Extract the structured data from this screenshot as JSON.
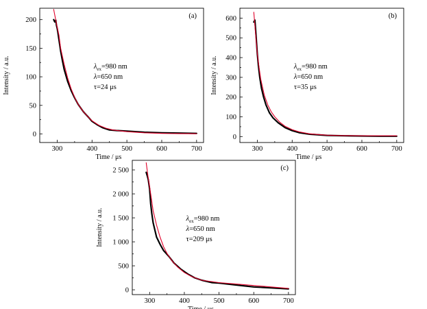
{
  "chart_data": [
    {
      "type": "line",
      "panel": "(a)",
      "xlabel": "Time  / μs",
      "ylabel": "Intensity / a.u.",
      "xlim": [
        250,
        720
      ],
      "ylim": [
        -15,
        220
      ],
      "x_ticks": [
        300,
        400,
        500,
        600,
        700
      ],
      "y_ticks": [
        0,
        50,
        100,
        150,
        200
      ],
      "y_tick_labels": [
        "0",
        "50",
        "100",
        "150",
        "200"
      ],
      "annotation": {
        "lambda_ex": "=980 nm",
        "lambda_symbol": "λ",
        "lambda_ex_sub": "ex",
        "lambda_line": "=650 nm",
        "tau_line": "τ=24 μs"
      },
      "series": [
        {
          "role": "measured",
          "color": "#000000",
          "x": [
            290,
            293,
            296,
            298,
            300,
            302,
            305,
            310,
            315,
            320,
            330,
            340,
            350,
            360,
            375,
            390,
            400,
            415,
            430,
            450,
            470,
            500,
            550,
            600,
            650,
            700
          ],
          "y": [
            200,
            196,
            199,
            190,
            185,
            178,
            165,
            145,
            128,
            113,
            92,
            76,
            63,
            52,
            39,
            29,
            22,
            16,
            11,
            7,
            6,
            5,
            3,
            2,
            1.5,
            1
          ]
        },
        {
          "role": "fit",
          "color": "#e0002a",
          "x": [
            290,
            295,
            300,
            305,
            310,
            320,
            330,
            340,
            350,
            360,
            375,
            390,
            400,
            420,
            440,
            460,
            500,
            550,
            600,
            650,
            700
          ],
          "y": [
            218,
            202,
            187,
            173,
            150,
            122,
            98,
            79,
            64,
            52,
            39,
            29,
            23,
            15,
            10,
            7,
            4,
            2,
            1,
            0.5,
            0.3
          ]
        }
      ]
    },
    {
      "type": "line",
      "panel": "(b)",
      "xlabel": "Time  / μs",
      "ylabel": "Intensity / a.u.",
      "xlim": [
        250,
        720
      ],
      "ylim": [
        -30,
        650
      ],
      "x_ticks": [
        300,
        400,
        500,
        600,
        700
      ],
      "y_ticks": [
        0,
        100,
        200,
        300,
        400,
        500,
        600
      ],
      "y_tick_labels": [
        "0",
        "100",
        "200",
        "300",
        "400",
        "500",
        "600"
      ],
      "annotation": {
        "lambda_ex": "=980 nm",
        "lambda_symbol": "λ",
        "lambda_ex_sub": "ex",
        "lambda_line": "=650 nm",
        "tau_line": "τ=35 μs"
      },
      "series": [
        {
          "role": "measured",
          "color": "#000000",
          "x": [
            290,
            293,
            296,
            300,
            303,
            307,
            312,
            318,
            325,
            335,
            345,
            360,
            380,
            400,
            420,
            450,
            500,
            550,
            600,
            650,
            700
          ],
          "y": [
            580,
            590,
            520,
            420,
            360,
            300,
            245,
            200,
            160,
            120,
            95,
            70,
            45,
            30,
            20,
            12,
            6,
            4,
            3,
            2,
            2
          ]
        },
        {
          "role": "fit",
          "color": "#e0002a",
          "x": [
            290,
            295,
            300,
            305,
            310,
            320,
            330,
            340,
            350,
            365,
            380,
            400,
            420,
            450,
            500,
            550,
            600,
            650,
            700
          ],
          "y": [
            630,
            520,
            420,
            350,
            290,
            210,
            160,
            125,
            100,
            72,
            52,
            35,
            24,
            14,
            7,
            5,
            4,
            4,
            4
          ]
        }
      ]
    },
    {
      "type": "line",
      "panel": "(c)",
      "xlabel": "Time  / μs",
      "ylabel": "Intensity / a.u.",
      "xlim": [
        250,
        720
      ],
      "ylim": [
        -100,
        2700
      ],
      "x_ticks": [
        300,
        400,
        500,
        600,
        700
      ],
      "y_ticks": [
        0,
        500,
        1000,
        1500,
        2000,
        2500
      ],
      "y_tick_labels": [
        "0",
        "500",
        "1 000",
        "1 500",
        "2 000",
        "2 500"
      ],
      "annotation": {
        "lambda_ex": "=980 nm",
        "lambda_symbol": "λ",
        "lambda_ex_sub": "ex",
        "lambda_line": "=650 nm",
        "tau_line": "τ=209 μs"
      },
      "series": [
        {
          "role": "measured",
          "color": "#000000",
          "x": [
            290,
            293,
            296,
            300,
            303,
            306,
            310,
            315,
            320,
            330,
            340,
            355,
            370,
            390,
            410,
            430,
            450,
            480,
            500,
            550,
            600,
            650,
            700
          ],
          "y": [
            2450,
            2380,
            2300,
            2100,
            1800,
            1600,
            1400,
            1250,
            1100,
            950,
            820,
            700,
            560,
            430,
            330,
            250,
            200,
            150,
            140,
            100,
            60,
            40,
            20
          ]
        },
        {
          "role": "fit",
          "color": "#e0002a",
          "x": [
            290,
            295,
            300,
            305,
            310,
            320,
            330,
            340,
            350,
            365,
            380,
            400,
            420,
            450,
            500,
            550,
            600,
            650,
            700
          ],
          "y": [
            2650,
            2380,
            2150,
            1900,
            1650,
            1350,
            1100,
            900,
            760,
            600,
            480,
            360,
            280,
            200,
            150,
            120,
            90,
            60,
            30
          ]
        }
      ]
    }
  ]
}
